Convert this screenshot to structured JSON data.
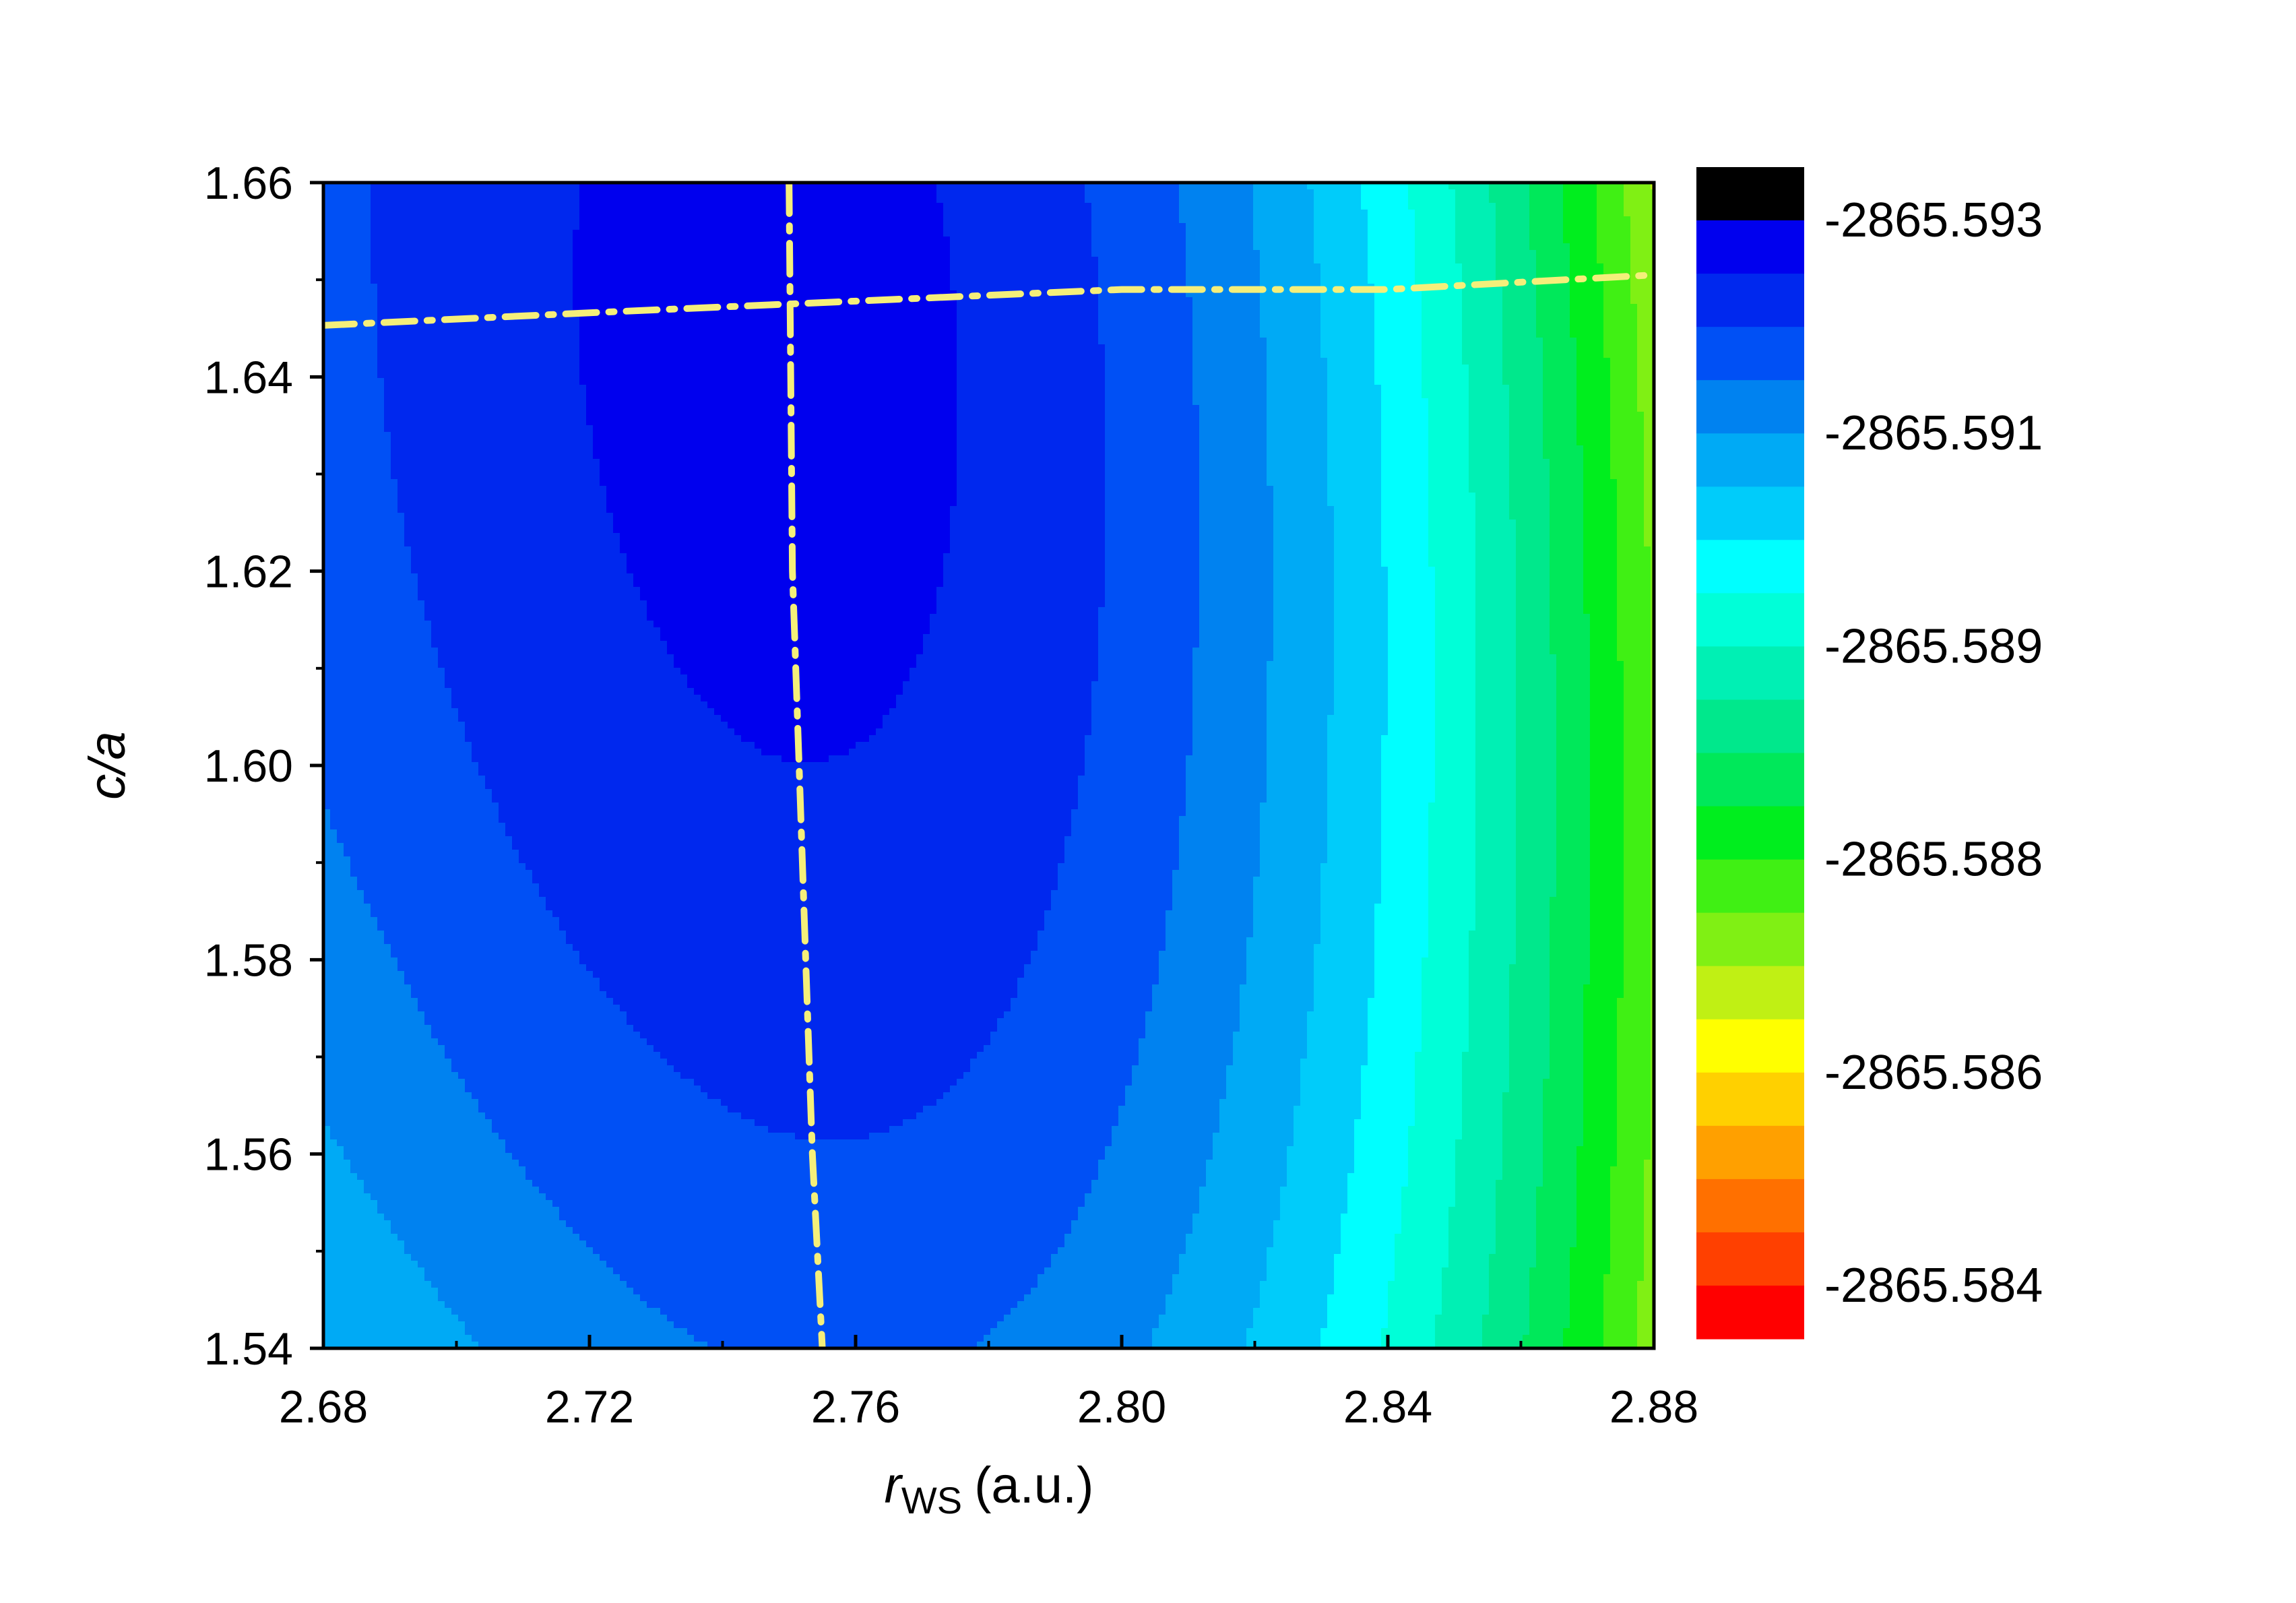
{
  "chart_data": {
    "type": "heatmap",
    "title": "",
    "xlabel": "r",
    "xlabel_subscript": "WS",
    "xlabel_unit": "(a.u.)",
    "ylabel": "c/a",
    "xlim": [
      2.68,
      2.88
    ],
    "ylim": [
      1.54,
      1.66
    ],
    "x_ticks": [
      "2.68",
      "2.72",
      "2.76",
      "2.80",
      "2.84",
      "2.88"
    ],
    "x_tick_values": [
      2.68,
      2.72,
      2.76,
      2.8,
      2.84,
      2.88
    ],
    "y_ticks": [
      "1.54",
      "1.56",
      "1.58",
      "1.60",
      "1.62",
      "1.64",
      "1.66"
    ],
    "y_tick_values": [
      1.54,
      1.56,
      1.58,
      1.6,
      1.62,
      1.64,
      1.66
    ],
    "grid": false,
    "colorbar": {
      "labels": [
        "-2865.593",
        "-2865.591",
        "-2865.589",
        "-2865.588",
        "-2865.586",
        "-2865.584"
      ],
      "colors": [
        "#000000",
        "#0000ee",
        "#0028ee",
        "#0050f5",
        "#0082f0",
        "#00aaf5",
        "#00ccfa",
        "#00ffff",
        "#00ffd8",
        "#00f0b4",
        "#00e88c",
        "#00e85a",
        "#00ee1e",
        "#40f014",
        "#80f014",
        "#c0f014",
        "#ffff00",
        "#ffd000",
        "#ffa000",
        "#ff7000",
        "#ff4000",
        "#ff0000"
      ]
    },
    "field_model": {
      "e0": -2865.5932,
      "x0_at_y154": 2.7587,
      "x0_slope": -0.1,
      "y0": 1.645,
      "a": 0.0025,
      "b": 0.1,
      "c": 0.00095,
      "level_start": -2865.5935,
      "level_step": 0.0005
    },
    "overlay_lines": [
      {
        "name": "min-energy-ca-line",
        "color": "#f5ef7a",
        "style": "dash-dot",
        "points": [
          [
            2.68,
            1.6453
          ],
          [
            2.72,
            1.6466
          ],
          [
            2.75,
            1.6475
          ],
          [
            2.8,
            1.649
          ],
          [
            2.84,
            1.649
          ],
          [
            2.88,
            1.6505
          ]
        ]
      },
      {
        "name": "min-energy-rws-line",
        "color": "#f5ef7a",
        "style": "dash-dot",
        "points": [
          [
            2.75,
            1.66
          ],
          [
            2.7505,
            1.62
          ],
          [
            2.7515,
            1.6
          ],
          [
            2.7525,
            1.58
          ],
          [
            2.7535,
            1.56
          ],
          [
            2.755,
            1.54
          ]
        ]
      }
    ]
  }
}
